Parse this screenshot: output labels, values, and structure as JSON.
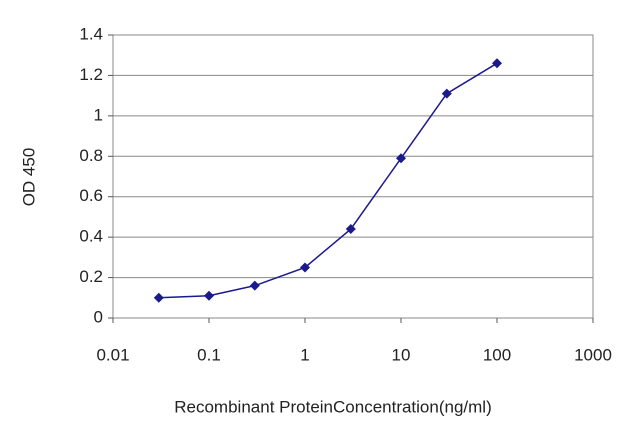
{
  "chart_data": {
    "type": "line",
    "x_label": "Recombinant ProteinConcentration(ng/ml)",
    "y_label": "OD 450",
    "x": [
      0.03,
      0.1,
      0.3,
      1,
      3,
      10,
      30,
      100
    ],
    "series": [
      {
        "name": "OD 450",
        "color": "#1a1a8c",
        "values": [
          0.1,
          0.11,
          0.16,
          0.25,
          0.44,
          0.79,
          1.11,
          1.26
        ]
      }
    ],
    "xscale": "log",
    "xlim": [
      0.01,
      1000
    ],
    "xticks": [
      0.01,
      0.1,
      1,
      10,
      100,
      1000
    ],
    "ylim": [
      0,
      1.4
    ],
    "yticks": [
      0,
      0.2,
      0.4,
      0.6,
      0.8,
      1,
      1.2,
      1.4
    ],
    "grid": true
  }
}
